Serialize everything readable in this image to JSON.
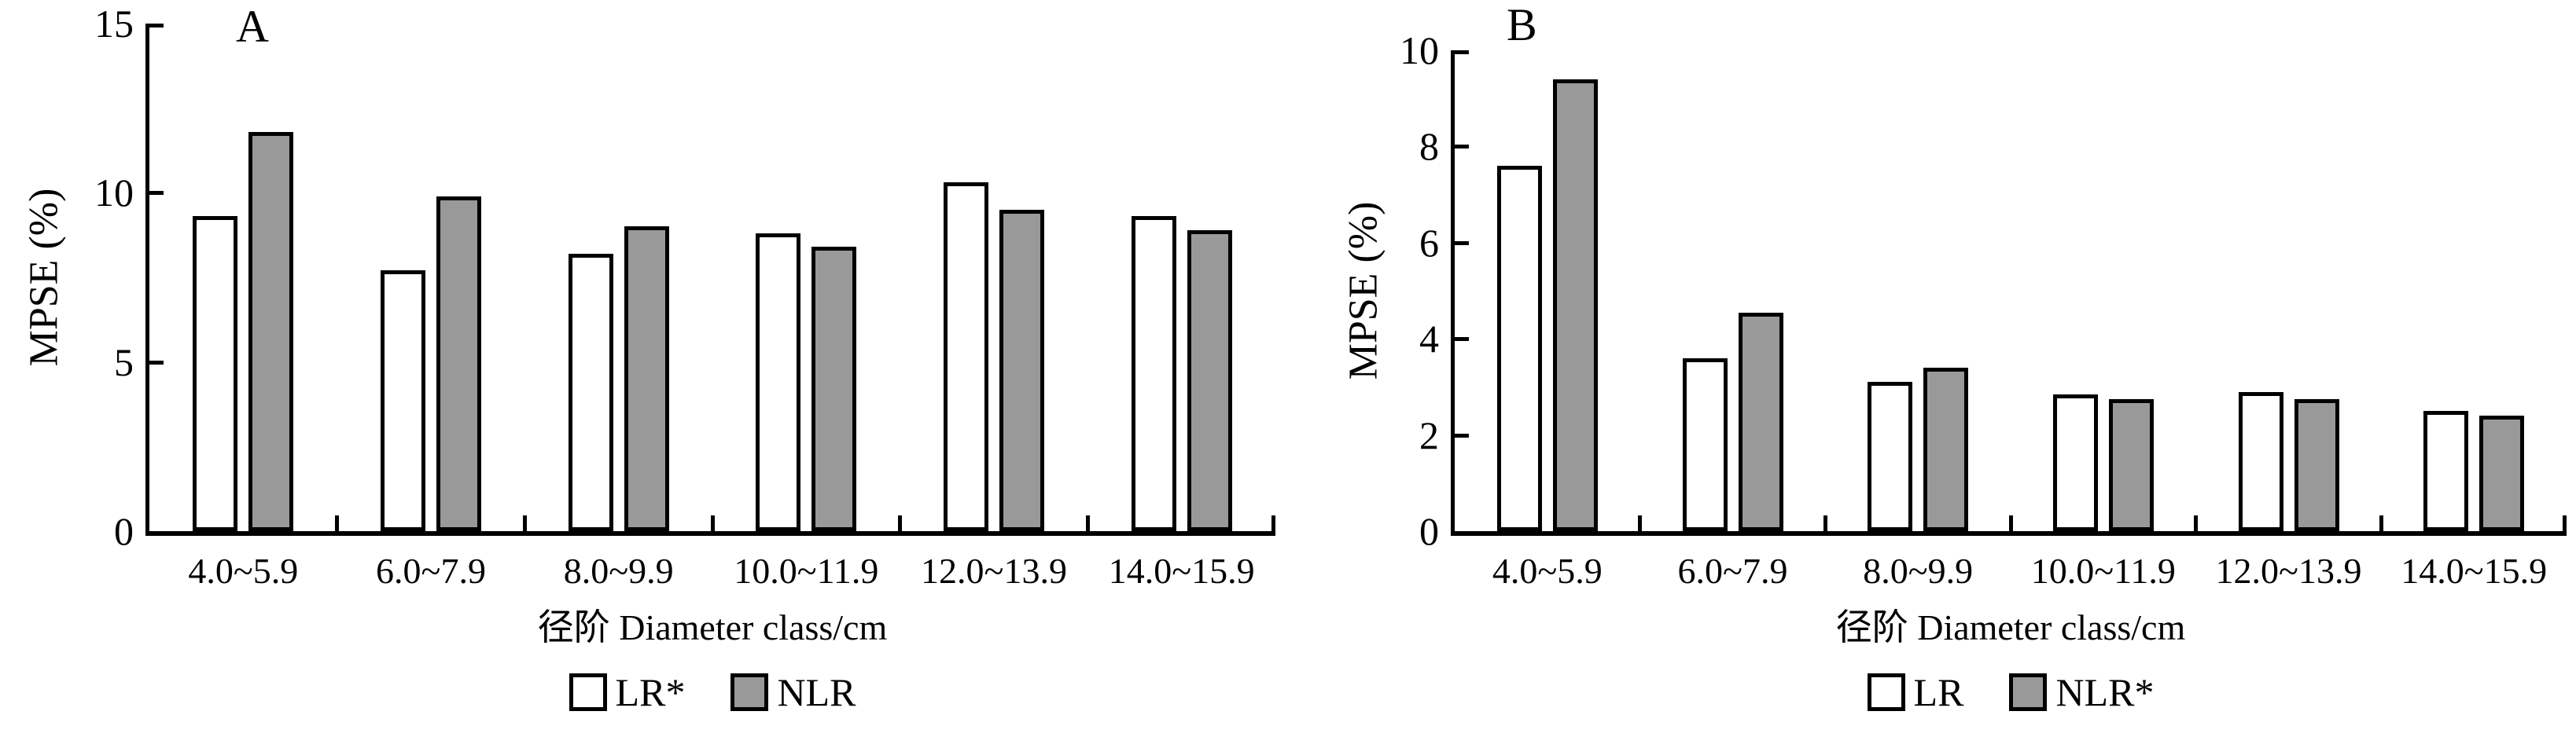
{
  "figure": {
    "background": "#ffffff",
    "text_color": "#000000",
    "bar_outline_color": "#000000",
    "gray_fill": "#999999",
    "white_fill": "#ffffff"
  },
  "chart_data": [
    {
      "type": "bar",
      "panel_label": "A",
      "ylabel": "MPSE (%)",
      "xlabel": "径阶  Diameter class/cm",
      "categories": [
        "4.0~5.9",
        "6.0~7.9",
        "8.0~9.9",
        "10.0~11.9",
        "12.0~13.9",
        "14.0~15.9"
      ],
      "series": [
        {
          "name": "LR*",
          "fill": "#ffffff",
          "values": [
            9.3,
            7.7,
            8.2,
            8.8,
            10.3,
            9.3
          ]
        },
        {
          "name": "NLR",
          "fill": "#999999",
          "values": [
            11.8,
            9.9,
            9.0,
            8.4,
            9.5,
            8.9
          ]
        }
      ],
      "ylim": [
        0,
        15
      ],
      "yticks": [
        0,
        5,
        10,
        15
      ],
      "grid": false,
      "legend_position": "bottom"
    },
    {
      "type": "bar",
      "panel_label": "B",
      "ylabel": "MPSE (%)",
      "xlabel": "径阶  Diameter class/cm",
      "categories": [
        "4.0~5.9",
        "6.0~7.9",
        "8.0~9.9",
        "10.0~11.9",
        "12.0~13.9",
        "14.0~15.9"
      ],
      "series": [
        {
          "name": "LR",
          "fill": "#ffffff",
          "values": [
            7.6,
            3.6,
            3.1,
            2.85,
            2.9,
            2.5
          ]
        },
        {
          "name": "NLR*",
          "fill": "#999999",
          "values": [
            9.4,
            4.55,
            3.4,
            2.75,
            2.75,
            2.4
          ]
        }
      ],
      "ylim": [
        0,
        10
      ],
      "yticks": [
        0,
        2,
        4,
        6,
        8,
        10
      ],
      "grid": false,
      "legend_position": "bottom"
    }
  ]
}
